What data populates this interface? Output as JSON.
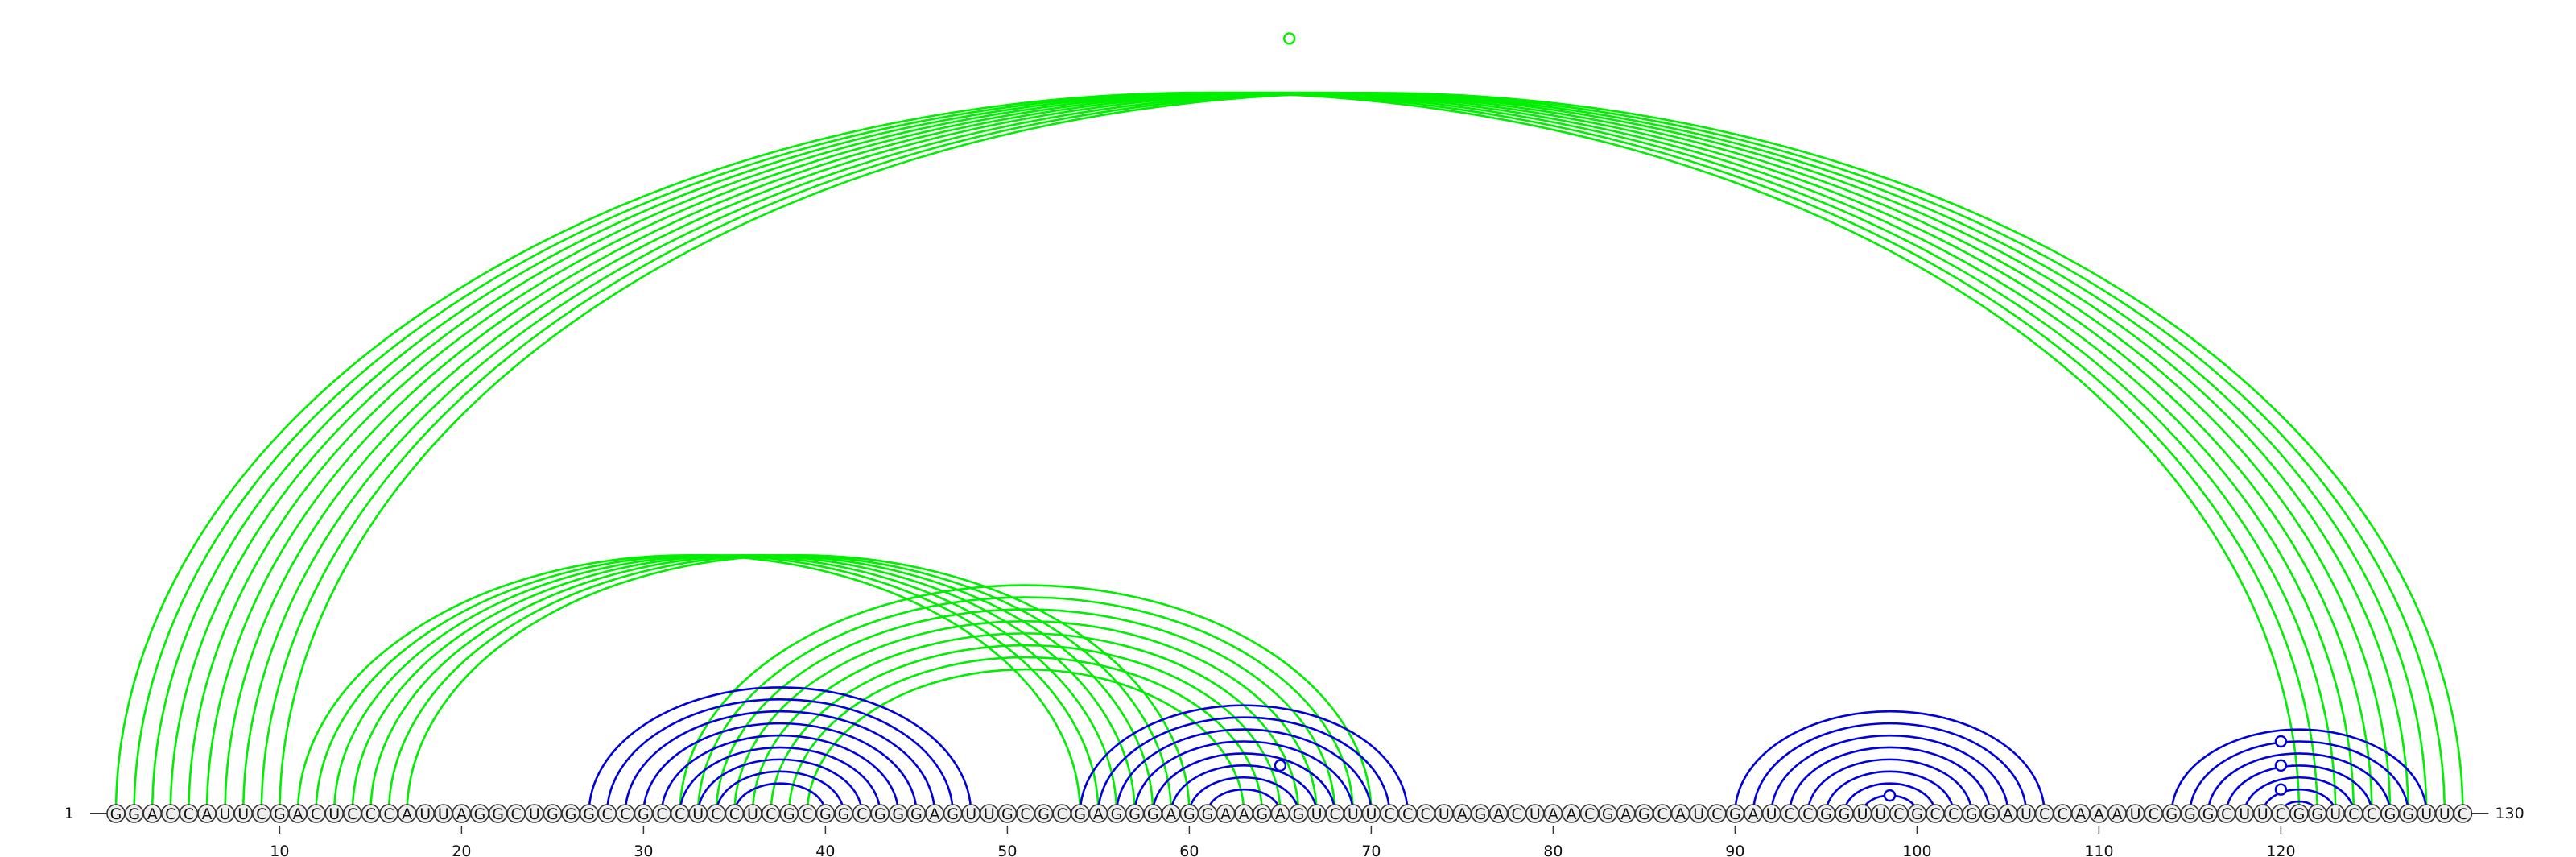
{
  "sequence": "GGACCAUUCGACUCCCAUUAGGCUGGGCCGCCUCCUCGCGGCGGGAGUUGCGCGAGGGAGGAAGAGUCUUCCCUAGACUAACGAGCAUCGAUCCGGUUCGCCGGAUCCAAAUCGGGCUUCGGUCCGGUUC",
  "start_label": "1",
  "end_label": "130",
  "tick_labels": [
    "10",
    "20",
    "30",
    "40",
    "50",
    "60",
    "70",
    "80",
    "90",
    "100",
    "110",
    "120"
  ],
  "colors": {
    "pairs_a": "#00ee00",
    "pairs_b": "#0000dd",
    "line": "#333333"
  },
  "pair_sets": [
    {
      "color": "#00ee00",
      "pairs": [
        [
          1,
          121
        ],
        [
          2,
          122
        ],
        [
          3,
          123
        ],
        [
          4,
          124
        ],
        [
          5,
          125
        ],
        [
          6,
          126
        ],
        [
          7,
          127
        ],
        [
          8,
          128
        ],
        [
          9,
          129
        ],
        [
          10,
          130
        ],
        [
          11,
          54
        ],
        [
          12,
          55
        ],
        [
          13,
          56
        ],
        [
          14,
          57
        ],
        [
          15,
          58
        ],
        [
          16,
          59
        ],
        [
          17,
          60
        ],
        [
          32,
          70
        ],
        [
          33,
          69
        ],
        [
          34,
          68
        ],
        [
          35,
          67
        ],
        [
          36,
          66
        ],
        [
          37,
          65
        ],
        [
          38,
          64
        ],
        [
          39,
          63
        ]
      ]
    },
    {
      "color": "#0000dd",
      "pairs": [
        [
          27,
          48
        ],
        [
          28,
          47
        ],
        [
          29,
          46
        ],
        [
          30,
          45
        ],
        [
          31,
          44
        ],
        [
          32,
          43
        ],
        [
          33,
          42
        ],
        [
          34,
          41
        ],
        [
          35,
          40
        ],
        [
          54,
          72
        ],
        [
          55,
          71
        ],
        [
          56,
          70
        ],
        [
          57,
          69
        ],
        [
          58,
          68
        ],
        [
          59,
          67
        ],
        [
          60,
          66
        ],
        [
          61,
          65
        ],
        [
          90,
          107
        ],
        [
          91,
          106
        ],
        [
          92,
          105
        ],
        [
          93,
          104
        ],
        [
          94,
          103
        ],
        [
          95,
          102
        ],
        [
          96,
          101
        ],
        [
          97,
          100
        ],
        [
          114,
          128
        ],
        [
          115,
          127
        ],
        [
          116,
          126
        ],
        [
          117,
          125
        ],
        [
          118,
          124
        ],
        [
          119,
          123
        ],
        [
          120,
          122
        ]
      ]
    }
  ],
  "markers": [
    {
      "color": "#00ee00",
      "i": 1,
      "j": 130
    },
    {
      "color": "#0000dd",
      "i": 61,
      "j": 69
    },
    {
      "color": "#0000dd",
      "i": 97,
      "j": 100
    },
    {
      "color": "#0000dd",
      "i": 114,
      "j": 126
    },
    {
      "color": "#0000dd",
      "i": 116,
      "j": 124
    },
    {
      "color": "#0000dd",
      "i": 118,
      "j": 122
    }
  ]
}
